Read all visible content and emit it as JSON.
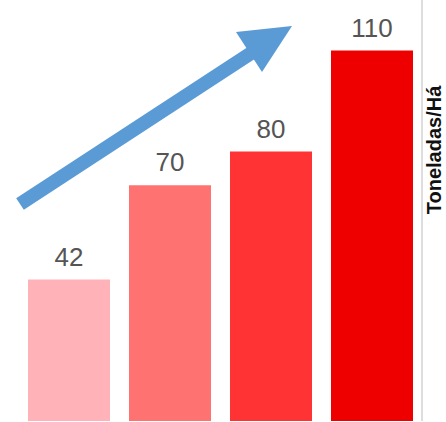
{
  "chart_data": {
    "type": "bar",
    "y_label": "Toneladas/Há",
    "categories": [
      null,
      null,
      null,
      null
    ],
    "values": [
      42,
      70,
      80,
      110
    ],
    "colors": [
      "#ffb3b8",
      "#ff7272",
      "#ff3333",
      "#ee0000"
    ],
    "ylim": [
      0,
      125
    ],
    "data_labels": true,
    "tick_labels": false,
    "grid": false
  }
}
